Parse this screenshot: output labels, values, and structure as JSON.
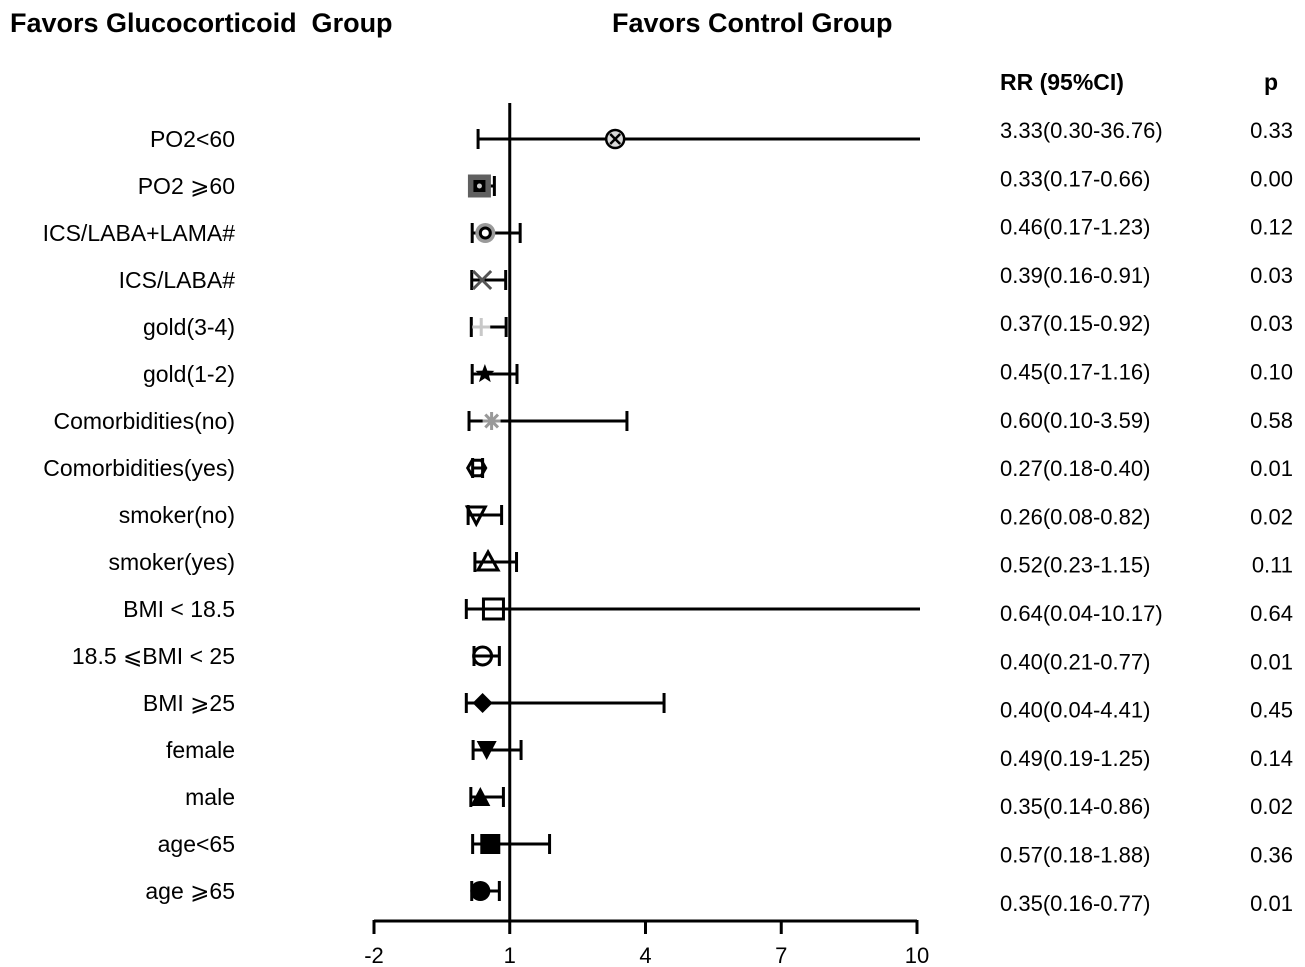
{
  "headers": {
    "left": "Favors Glucocorticoid  Group",
    "right": "Favors Control Group"
  },
  "columns": {
    "rr": "RR (95%CI)",
    "p": "p"
  },
  "chart_data": {
    "type": "forest",
    "xlim": [
      -2,
      10
    ],
    "xticks": [
      "-2",
      "1",
      "4",
      "7",
      "10"
    ],
    "reference_line": 1,
    "rows": [
      {
        "label": "PO2<60",
        "rr": 3.33,
        "lo": 0.3,
        "hi": 36.76,
        "ci_text": "3.33(0.30-36.76)",
        "p": "0.33",
        "marker": "circle-x",
        "color": "#000000",
        "fill": "#d9d9d9"
      },
      {
        "label": "PO2 ⩾60",
        "rr": 0.33,
        "lo": 0.17,
        "hi": 0.66,
        "ci_text": "0.33(0.17-0.66)",
        "p": "0.00",
        "marker": "square-dot",
        "color": "#000000",
        "fill": "#606060"
      },
      {
        "label": "ICS/LABA+LAMA#",
        "rr": 0.46,
        "lo": 0.17,
        "hi": 1.23,
        "ci_text": "0.46(0.17-1.23)",
        "p": "0.12",
        "marker": "circle-dot",
        "color": "#000000",
        "fill": "#9a9a9a"
      },
      {
        "label": "ICS/LABA#",
        "rr": 0.39,
        "lo": 0.16,
        "hi": 0.91,
        "ci_text": "0.39(0.16-0.91)",
        "p": "0.03",
        "marker": "x",
        "color": "#555555",
        "fill": "none"
      },
      {
        "label": "gold(3-4)",
        "rr": 0.37,
        "lo": 0.15,
        "hi": 0.92,
        "ci_text": "0.37(0.15-0.92)",
        "p": "0.03",
        "marker": "plus",
        "color": "#c8c8c8",
        "fill": "none"
      },
      {
        "label": "gold(1-2)",
        "rr": 0.45,
        "lo": 0.17,
        "hi": 1.16,
        "ci_text": "0.45(0.17-1.16)",
        "p": "0.10",
        "marker": "star",
        "color": "#000000",
        "fill": "#000000"
      },
      {
        "label": "Comorbidities(no)",
        "rr": 0.6,
        "lo": 0.1,
        "hi": 3.59,
        "ci_text": "0.60(0.10-3.59)",
        "p": "0.58",
        "marker": "asterisk",
        "color": "#999999",
        "fill": "none"
      },
      {
        "label": "Comorbidities(yes)",
        "rr": 0.27,
        "lo": 0.18,
        "hi": 0.4,
        "ci_text": "0.27(0.18-0.40)",
        "p": "0.01",
        "marker": "hexagon",
        "color": "#000000",
        "fill": "none"
      },
      {
        "label": "smoker(no)",
        "rr": 0.26,
        "lo": 0.08,
        "hi": 0.82,
        "ci_text": "0.26(0.08-0.82)",
        "p": "0.02",
        "marker": "triangle-down-open",
        "color": "#000000",
        "fill": "none"
      },
      {
        "label": "smoker(yes)",
        "rr": 0.52,
        "lo": 0.23,
        "hi": 1.15,
        "ci_text": "0.52(0.23-1.15)",
        "p": "0.11",
        "marker": "triangle-up-open",
        "color": "#000000",
        "fill": "none"
      },
      {
        "label": "BMI < 18.5",
        "rr": 0.64,
        "lo": 0.04,
        "hi": 10.17,
        "ci_text": "0.64(0.04-10.17)",
        "p": "0.64",
        "marker": "square-open",
        "color": "#000000",
        "fill": "none"
      },
      {
        "label": "18.5 ⩽BMI < 25",
        "rr": 0.4,
        "lo": 0.21,
        "hi": 0.77,
        "ci_text": "0.40(0.21-0.77)",
        "p": "0.01",
        "marker": "circle-open",
        "color": "#000000",
        "fill": "none"
      },
      {
        "label": "BMI ⩾25",
        "rr": 0.4,
        "lo": 0.04,
        "hi": 4.41,
        "ci_text": "0.40(0.04-4.41)",
        "p": "0.45",
        "marker": "diamond",
        "color": "#000000",
        "fill": "#000000"
      },
      {
        "label": "female",
        "rr": 0.49,
        "lo": 0.19,
        "hi": 1.25,
        "ci_text": "0.49(0.19-1.25)",
        "p": "0.14",
        "marker": "triangle-down",
        "color": "#000000",
        "fill": "#000000"
      },
      {
        "label": "male",
        "rr": 0.35,
        "lo": 0.14,
        "hi": 0.86,
        "ci_text": "0.35(0.14-0.86)",
        "p": "0.02",
        "marker": "triangle-up",
        "color": "#000000",
        "fill": "#000000"
      },
      {
        "label": "age<65",
        "rr": 0.57,
        "lo": 0.18,
        "hi": 1.88,
        "ci_text": "0.57(0.18-1.88)",
        "p": "0.36",
        "marker": "square",
        "color": "#000000",
        "fill": "#000000"
      },
      {
        "label": "age ⩾65",
        "rr": 0.35,
        "lo": 0.16,
        "hi": 0.77,
        "ci_text": "0.35(0.16-0.77)",
        "p": "0.01",
        "marker": "circle",
        "color": "#000000",
        "fill": "#000000"
      }
    ]
  }
}
